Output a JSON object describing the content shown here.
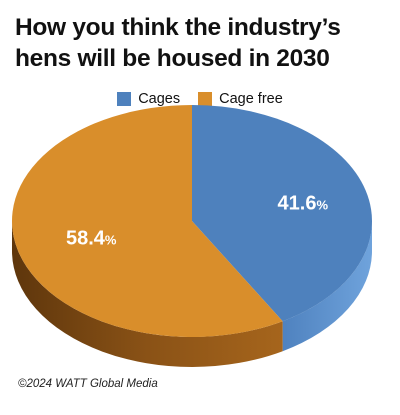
{
  "chart_data": {
    "type": "pie",
    "title": "How you think the industry’s hens will be housed in 2030",
    "categories": [
      "Cages",
      "Cage free"
    ],
    "values": [
      41.6,
      58.4
    ],
    "value_labels": [
      "41.6",
      "58.4"
    ],
    "unit": "%",
    "legend": {
      "placement": "top-center",
      "items": [
        {
          "label": "Cages",
          "color": "#4e81bd"
        },
        {
          "label": "Cage free",
          "color": "#d98e2b"
        }
      ]
    },
    "style": "3d"
  },
  "colors": {
    "cages": "#4e81bd",
    "cages_side": "#5f92cf",
    "cage_free": "#d98e2b",
    "cage_free_side": "#8a4f12"
  },
  "credit": "©2024 WATT Global Media"
}
